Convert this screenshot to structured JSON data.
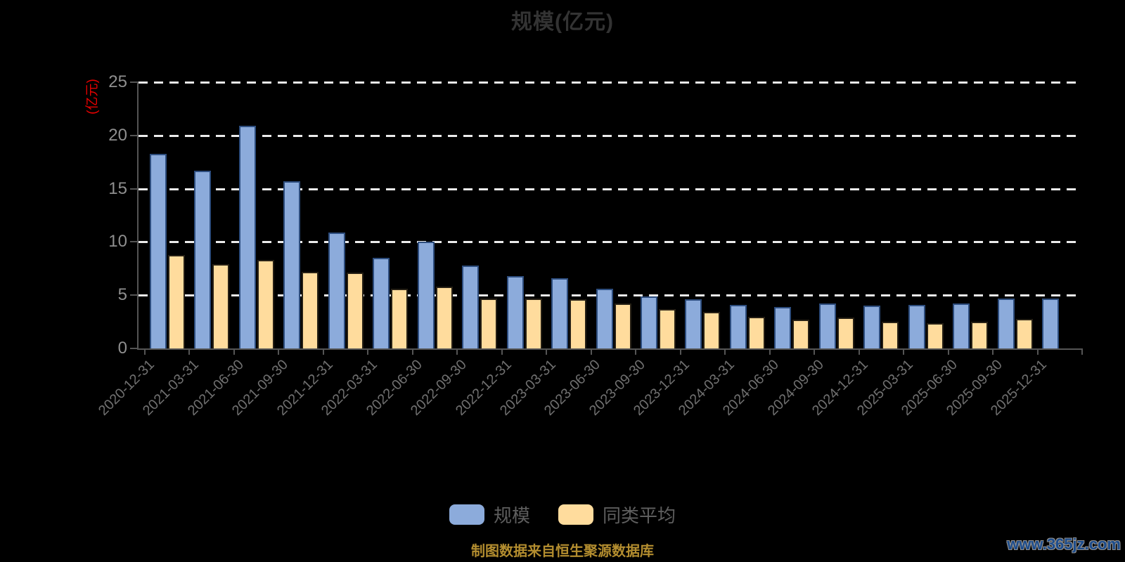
{
  "title": "规模(亿元)",
  "y_axis_name": "(亿元)",
  "footer": {
    "source_note": "制图数据来自恒生聚源数据库",
    "watermark": "www.365jz.com"
  },
  "legend": [
    {
      "label": "规模",
      "color": "#8cabdb"
    },
    {
      "label": "同类平均",
      "color": "#ffdc9d"
    }
  ],
  "colors": {
    "background": "#000000",
    "title": "#333333",
    "axis_line": "#555555",
    "gridline": "#ebebeb",
    "y_axis_name_red": "#e60000",
    "axis_label_gray": "#8f8f8f",
    "source_note_gold": "#b38d2f",
    "watermark_blue": "#1c4c8c"
  },
  "chart_data": {
    "type": "bar",
    "title": "规模(亿元)",
    "ylabel": "(亿元)",
    "ylim": [
      0,
      25
    ],
    "yticks": [
      0,
      5,
      10,
      15,
      20,
      25
    ],
    "grid": "horizontal-dashed",
    "legend_position": "bottom",
    "categories": [
      "2020-12-31",
      "2021-03-31",
      "2021-06-30",
      "2021-09-30",
      "2021-12-31",
      "2022-03-31",
      "2022-06-30",
      "2022-09-30",
      "2022-12-31",
      "2023-03-31",
      "2023-06-30",
      "2023-09-30",
      "2023-12-31",
      "2024-03-31",
      "2024-06-30",
      "2024-09-30",
      "2024-12-31",
      "2025-03-31",
      "2025-06-30",
      "2025-09-30",
      "2025-12-31"
    ],
    "series": [
      {
        "name": "规模",
        "fill": "#8cabdb",
        "border": "#2d4d7e",
        "values": [
          18.3,
          16.7,
          20.9,
          15.7,
          10.9,
          8.5,
          10.0,
          7.8,
          6.8,
          6.6,
          5.6,
          4.9,
          4.6,
          4.1,
          3.9,
          4.2,
          4.0,
          4.1,
          4.2,
          4.7,
          4.7
        ]
      },
      {
        "name": "同类平均",
        "fill": "#ffdc9d",
        "border": "#262015",
        "values": [
          8.8,
          7.9,
          8.3,
          7.2,
          7.1,
          5.6,
          5.8,
          4.7,
          4.7,
          4.6,
          4.2,
          3.7,
          3.4,
          3.0,
          2.7,
          2.9,
          2.5,
          2.4,
          2.5,
          2.8,
          0
        ]
      }
    ]
  }
}
